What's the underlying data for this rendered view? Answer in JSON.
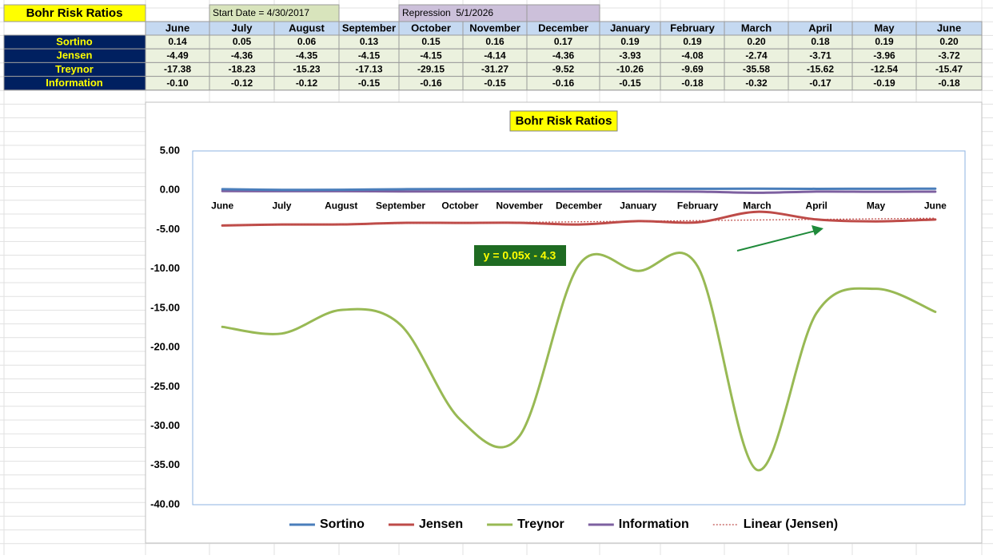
{
  "sheet": {
    "title": "Bohr Risk Ratios",
    "start_date": "Start Date = 4/30/2017",
    "repression": "Repression  5/1/2026",
    "table": {
      "columns": [
        "June",
        "July",
        "August",
        "September",
        "October",
        "November",
        "December",
        "January",
        "February",
        "March",
        "April",
        "May",
        "June"
      ],
      "rows": [
        {
          "label": "Sortino",
          "values": [
            "0.14",
            "0.05",
            "0.06",
            "0.13",
            "0.15",
            "0.16",
            "0.17",
            "0.19",
            "0.19",
            "0.20",
            "0.18",
            "0.19",
            "0.20"
          ]
        },
        {
          "label": "Jensen",
          "values": [
            "-4.49",
            "-4.36",
            "-4.35",
            "-4.15",
            "-4.15",
            "-4.14",
            "-4.36",
            "-3.93",
            "-4.08",
            "-2.74",
            "-3.71",
            "-3.96",
            "-3.72"
          ]
        },
        {
          "label": "Treynor",
          "values": [
            "-17.38",
            "-18.23",
            "-15.23",
            "-17.13",
            "-29.15",
            "-31.27",
            "-9.52",
            "-10.26",
            "-9.69",
            "-35.58",
            "-15.62",
            "-12.54",
            "-15.47"
          ]
        },
        {
          "label": "Information",
          "values": [
            "-0.10",
            "-0.12",
            "-0.12",
            "-0.15",
            "-0.16",
            "-0.15",
            "-0.16",
            "-0.15",
            "-0.18",
            "-0.32",
            "-0.17",
            "-0.19",
            "-0.18"
          ]
        }
      ]
    }
  },
  "chart_data": {
    "type": "line",
    "title": "Bohr Risk Ratios",
    "categories": [
      "June",
      "July",
      "August",
      "September",
      "October",
      "November",
      "December",
      "January",
      "February",
      "March",
      "April",
      "May",
      "June"
    ],
    "series": [
      {
        "name": "Sortino",
        "color": "#4a7ebb",
        "values": [
          0.14,
          0.05,
          0.06,
          0.13,
          0.15,
          0.16,
          0.17,
          0.19,
          0.19,
          0.2,
          0.18,
          0.19,
          0.2
        ]
      },
      {
        "name": "Jensen",
        "color": "#be4b48",
        "values": [
          -4.49,
          -4.36,
          -4.35,
          -4.15,
          -4.15,
          -4.14,
          -4.36,
          -3.93,
          -4.08,
          -2.74,
          -3.71,
          -3.96,
          -3.72
        ]
      },
      {
        "name": "Treynor",
        "color": "#98b954",
        "values": [
          -17.38,
          -18.23,
          -15.23,
          -17.13,
          -29.15,
          -31.27,
          -9.52,
          -10.26,
          -9.69,
          -35.58,
          -15.62,
          -12.54,
          -15.47
        ]
      },
      {
        "name": "Information",
        "color": "#7d60a0",
        "values": [
          -0.1,
          -0.12,
          -0.12,
          -0.15,
          -0.16,
          -0.15,
          -0.16,
          -0.15,
          -0.18,
          -0.32,
          -0.17,
          -0.19,
          -0.18
        ]
      }
    ],
    "trendline": {
      "name": "Linear (Jensen)",
      "color": "#c0504d",
      "equation": "y = 0.05x - 4.3"
    },
    "ylim": [
      -40,
      5
    ],
    "yticks": [
      {
        "value": -40,
        "label": "-40.00"
      },
      {
        "value": -35,
        "label": "-35.00"
      },
      {
        "value": -30,
        "label": "-30.00"
      },
      {
        "value": -25,
        "label": "-25.00"
      },
      {
        "value": -20,
        "label": "-20.00"
      },
      {
        "value": -15,
        "label": "-15.00"
      },
      {
        "value": -10,
        "label": "-10.00"
      },
      {
        "value": -5,
        "label": "-5.00"
      },
      {
        "value": 0,
        "label": "0.00"
      },
      {
        "value": 5,
        "label": "5.00"
      }
    ]
  }
}
